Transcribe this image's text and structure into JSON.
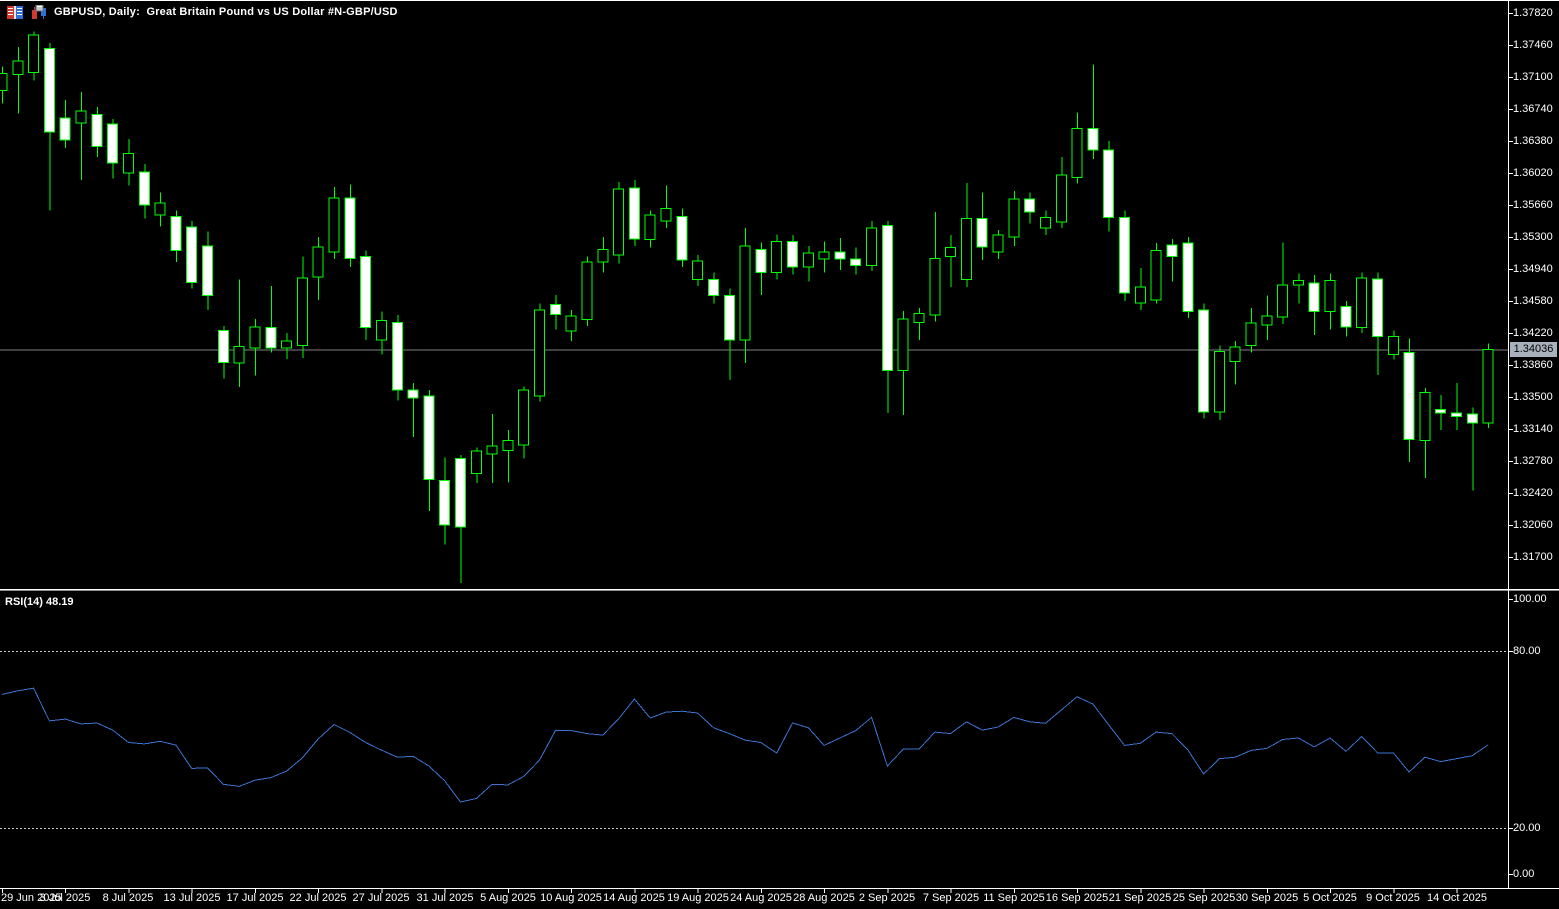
{
  "window": {
    "title": "GBPUSD, Daily:  Great Britain Pound vs US Dollar #N-GBP/USD"
  },
  "icons": [
    "market-watch-icon",
    "candlestick-chart-icon"
  ],
  "rsi": {
    "label": "RSI(14) 48.19"
  },
  "price_axis": {
    "current_price": "1.34036"
  },
  "colors": {
    "background": "#000000",
    "candle_outline": "#00FF00",
    "bull_fill": "#000000",
    "bear_fill": "#FFFFFF",
    "rsi_line": "#3C73D2",
    "levels": "#C8C8C8",
    "price_line": "#808080",
    "price_box_bg": "#A9B2BC",
    "axis_text": "#FFFFFF",
    "axis_line": "#FFFFFF"
  },
  "chart_data": [
    {
      "type": "candlestick",
      "title": "GBPUSD Daily",
      "x_tick_labels": [
        "29 Jun 2025",
        "3 Jul 2025",
        "8 Jul 2025",
        "13 Jul 2025",
        "17 Jul 2025",
        "22 Jul 2025",
        "27 Jul 2025",
        "31 Jul 2025",
        "5 Aug 2025",
        "10 Aug 2025",
        "14 Aug 2025",
        "19 Aug 2025",
        "24 Aug 2025",
        "28 Aug 2025",
        "2 Sep 2025",
        "7 Sep 2025",
        "11 Sep 2025",
        "16 Sep 2025",
        "21 Sep 2025",
        "25 Sep 2025",
        "30 Sep 2025",
        "5 Oct 2025",
        "9 Oct 2025",
        "14 Oct 2025"
      ],
      "y_tick_labels": [
        "1.37820",
        "1.37460",
        "1.37100",
        "1.36740",
        "1.36380",
        "1.36020",
        "1.35660",
        "1.35300",
        "1.34940",
        "1.34580",
        "1.34220",
        "1.33860",
        "1.33500",
        "1.33140",
        "1.32780",
        "1.32420",
        "1.32060",
        "1.31700"
      ],
      "ylim": [
        1.3133,
        1.3797
      ],
      "current_price": 1.34036,
      "grid": false,
      "ohlc": [
        [
          1.3695,
          1.3722,
          1.368,
          1.3714
        ],
        [
          1.3713,
          1.3744,
          1.3669,
          1.3728
        ],
        [
          1.3715,
          1.3761,
          1.3706,
          1.3757
        ],
        [
          1.3742,
          1.3748,
          1.356,
          1.3648
        ],
        [
          1.3664,
          1.3684,
          1.363,
          1.3639
        ],
        [
          1.3658,
          1.3693,
          1.3594,
          1.3672
        ],
        [
          1.3668,
          1.3676,
          1.362,
          1.3632
        ],
        [
          1.3657,
          1.3663,
          1.3596,
          1.3613
        ],
        [
          1.3602,
          1.364,
          1.3588,
          1.3624
        ],
        [
          1.3603,
          1.3612,
          1.3551,
          1.3566
        ],
        [
          1.3555,
          1.358,
          1.3542,
          1.3568
        ],
        [
          1.3553,
          1.356,
          1.3502,
          1.3515
        ],
        [
          1.3541,
          1.3548,
          1.3472,
          1.3479
        ],
        [
          1.352,
          1.3536,
          1.3448,
          1.3464
        ],
        [
          1.3425,
          1.343,
          1.3371,
          1.3389
        ],
        [
          1.3388,
          1.3482,
          1.3361,
          1.3407
        ],
        [
          1.3405,
          1.3438,
          1.3374,
          1.3429
        ],
        [
          1.3428,
          1.3475,
          1.34,
          1.3405
        ],
        [
          1.3405,
          1.3422,
          1.3393,
          1.3413
        ],
        [
          1.3408,
          1.3508,
          1.3394,
          1.3484
        ],
        [
          1.3485,
          1.353,
          1.3459,
          1.3519
        ],
        [
          1.3513,
          1.3586,
          1.3505,
          1.3574
        ],
        [
          1.3574,
          1.3589,
          1.3496,
          1.3506
        ],
        [
          1.3508,
          1.3515,
          1.3414,
          1.3428
        ],
        [
          1.3414,
          1.3446,
          1.3398,
          1.3436
        ],
        [
          1.3434,
          1.3442,
          1.3346,
          1.3358
        ],
        [
          1.3358,
          1.3366,
          1.3305,
          1.3349
        ],
        [
          1.3351,
          1.3358,
          1.3222,
          1.3257
        ],
        [
          1.3256,
          1.3282,
          1.3184,
          1.3206
        ],
        [
          1.3281,
          1.3285,
          1.3141,
          1.3204
        ],
        [
          1.3264,
          1.3293,
          1.3253,
          1.3289
        ],
        [
          1.3286,
          1.3331,
          1.3253,
          1.3295
        ],
        [
          1.329,
          1.3313,
          1.3254,
          1.3301
        ],
        [
          1.3296,
          1.3362,
          1.3281,
          1.3358
        ],
        [
          1.3351,
          1.3455,
          1.3345,
          1.3448
        ],
        [
          1.3454,
          1.3465,
          1.3426,
          1.3443
        ],
        [
          1.3424,
          1.3448,
          1.3413,
          1.3441
        ],
        [
          1.3437,
          1.3508,
          1.343,
          1.3502
        ],
        [
          1.3502,
          1.353,
          1.349,
          1.3516
        ],
        [
          1.351,
          1.3592,
          1.35,
          1.3584
        ],
        [
          1.3585,
          1.3594,
          1.352,
          1.3528
        ],
        [
          1.3527,
          1.356,
          1.3518,
          1.3555
        ],
        [
          1.3548,
          1.3588,
          1.354,
          1.3562
        ],
        [
          1.3553,
          1.3562,
          1.3496,
          1.3504
        ],
        [
          1.3482,
          1.351,
          1.3475,
          1.3503
        ],
        [
          1.3482,
          1.349,
          1.3455,
          1.3464
        ],
        [
          1.3464,
          1.3472,
          1.3369,
          1.3414
        ],
        [
          1.3414,
          1.354,
          1.3388,
          1.352
        ],
        [
          1.3516,
          1.3524,
          1.3465,
          1.349
        ],
        [
          1.349,
          1.3533,
          1.3482,
          1.3525
        ],
        [
          1.3525,
          1.3532,
          1.3488,
          1.3496
        ],
        [
          1.3496,
          1.352,
          1.348,
          1.3512
        ],
        [
          1.3505,
          1.3525,
          1.349,
          1.3513
        ],
        [
          1.3513,
          1.3529,
          1.3493,
          1.3505
        ],
        [
          1.3505,
          1.3518,
          1.3488,
          1.3498
        ],
        [
          1.3498,
          1.3548,
          1.3492,
          1.354
        ],
        [
          1.3543,
          1.3548,
          1.3332,
          1.338
        ],
        [
          1.338,
          1.3447,
          1.333,
          1.3438
        ],
        [
          1.3434,
          1.345,
          1.3414,
          1.3444
        ],
        [
          1.3442,
          1.3558,
          1.3435,
          1.3506
        ],
        [
          1.3508,
          1.3532,
          1.3474,
          1.3518
        ],
        [
          1.3482,
          1.3591,
          1.3474,
          1.3551
        ],
        [
          1.3551,
          1.358,
          1.3504,
          1.3519
        ],
        [
          1.3513,
          1.3538,
          1.3505,
          1.3532
        ],
        [
          1.353,
          1.3582,
          1.352,
          1.3573
        ],
        [
          1.3573,
          1.358,
          1.3545,
          1.3558
        ],
        [
          1.354,
          1.356,
          1.3532,
          1.3552
        ],
        [
          1.3547,
          1.362,
          1.354,
          1.36
        ],
        [
          1.3597,
          1.367,
          1.359,
          1.3652
        ],
        [
          1.3652,
          1.3724,
          1.3618,
          1.3628
        ],
        [
          1.3628,
          1.3638,
          1.3536,
          1.3552
        ],
        [
          1.3552,
          1.356,
          1.3458,
          1.3467
        ],
        [
          1.3456,
          1.3495,
          1.3448,
          1.3474
        ],
        [
          1.3459,
          1.3523,
          1.3455,
          1.3515
        ],
        [
          1.3521,
          1.3528,
          1.348,
          1.3508
        ],
        [
          1.3523,
          1.353,
          1.3439,
          1.3446
        ],
        [
          1.3448,
          1.3455,
          1.3326,
          1.3333
        ],
        [
          1.3333,
          1.3408,
          1.3324,
          1.3401
        ],
        [
          1.339,
          1.3413,
          1.3364,
          1.3406
        ],
        [
          1.3408,
          1.345,
          1.34,
          1.3433
        ],
        [
          1.3431,
          1.3464,
          1.3414,
          1.3441
        ],
        [
          1.344,
          1.3524,
          1.3432,
          1.3476
        ],
        [
          1.3476,
          1.3489,
          1.3455,
          1.3481
        ],
        [
          1.3478,
          1.3487,
          1.342,
          1.3446
        ],
        [
          1.3446,
          1.3489,
          1.3426,
          1.3481
        ],
        [
          1.3452,
          1.3458,
          1.3418,
          1.3429
        ],
        [
          1.3428,
          1.349,
          1.3422,
          1.3484
        ],
        [
          1.3483,
          1.349,
          1.3375,
          1.3418
        ],
        [
          1.3398,
          1.3425,
          1.3392,
          1.3418
        ],
        [
          1.34,
          1.3416,
          1.3277,
          1.3302
        ],
        [
          1.3301,
          1.336,
          1.3259,
          1.3355
        ],
        [
          1.3336,
          1.3352,
          1.3313,
          1.3332
        ],
        [
          1.3332,
          1.3366,
          1.3313,
          1.3328
        ],
        [
          1.3331,
          1.3338,
          1.3245,
          1.3321
        ],
        [
          1.3321,
          1.341,
          1.3315,
          1.34036
        ]
      ]
    },
    {
      "type": "line",
      "name": "RSI(14)",
      "last_value": 48.19,
      "ylim": [
        0,
        100
      ],
      "levels": [
        80,
        20
      ],
      "y_tick_labels": [
        "100.00",
        "80.00",
        "20.00",
        "0.00"
      ],
      "values": [
        65.3,
        66.5,
        67.4,
        56.3,
        56.9,
        55.3,
        55.6,
        53.2,
        49.0,
        48.5,
        49.4,
        48.1,
        40.2,
        40.4,
        34.8,
        34.1,
        36.2,
        37.1,
        39.3,
        43.8,
        50.2,
        55.1,
        52.4,
        49.0,
        46.4,
        44.0,
        44.3,
        41.0,
        36.0,
        28.8,
        30.0,
        34.8,
        34.6,
        37.5,
        43.0,
        53.0,
        53.0,
        52.0,
        51.5,
        57.0,
        63.7,
        57.3,
        59.3,
        59.6,
        59.0,
        54.0,
        52.0,
        49.8,
        49.0,
        45.4,
        55.6,
        54.0,
        48.0,
        50.5,
        53.0,
        57.5,
        41.0,
        46.7,
        46.7,
        52.5,
        52.0,
        56.0,
        53.2,
        54.2,
        57.5,
        56.0,
        55.5,
        60.0,
        64.5,
        62.0,
        55.0,
        48.0,
        48.7,
        52.5,
        52.0,
        46.5,
        38.3,
        43.5,
        44.0,
        46.3,
        47.0,
        50.0,
        50.5,
        47.5,
        50.5,
        46.0,
        51.0,
        45.5,
        45.5,
        39.0,
        44.0,
        42.5,
        43.5,
        44.5,
        48.19
      ]
    }
  ]
}
